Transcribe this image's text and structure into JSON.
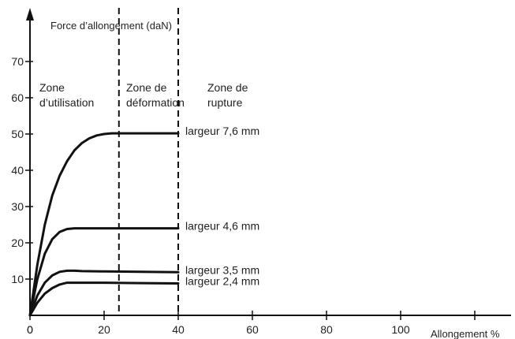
{
  "chart_data": {
    "type": "line",
    "title": "",
    "ylabel": "Force d’allongement (daN)",
    "xlabel": "Allongement %",
    "xlim": [
      0,
      120
    ],
    "ylim": [
      0,
      80
    ],
    "x_ticks": [
      0,
      20,
      40,
      60,
      80,
      100,
      120
    ],
    "x_tick_labels": [
      "0",
      "20",
      "40",
      "60",
      "80",
      "100",
      ""
    ],
    "y_ticks": [
      10,
      20,
      30,
      40,
      50,
      60,
      70
    ],
    "y_tick_labels": [
      "10",
      "20",
      "30",
      "40",
      "50",
      "60",
      "70"
    ],
    "grid": false,
    "vertical_lines": [
      24,
      40
    ],
    "zones": [
      {
        "line1": "Zone",
        "line2": "d’utilisation"
      },
      {
        "line1": "Zone de",
        "line2": "déformation"
      },
      {
        "line1": "Zone de",
        "line2": "rupture"
      }
    ],
    "series": [
      {
        "name": "largeur 7,6 mm",
        "x": [
          0,
          2,
          4,
          6,
          8,
          10,
          12,
          14,
          16,
          18,
          20,
          22,
          24,
          30,
          40
        ],
        "y": [
          0,
          14,
          25,
          33,
          38.5,
          42.5,
          45.5,
          47.5,
          48.8,
          49.6,
          50,
          50.2,
          50.2,
          50.2,
          50.2
        ]
      },
      {
        "name": "largeur 4,6 mm",
        "x": [
          0,
          2,
          4,
          6,
          8,
          10,
          12,
          14,
          20,
          30,
          40
        ],
        "y": [
          0,
          10,
          17,
          21,
          23,
          23.8,
          24,
          24,
          24,
          24,
          24
        ]
      },
      {
        "name": "largeur 3,5 mm",
        "x": [
          0,
          2,
          4,
          6,
          8,
          10,
          12,
          14,
          20,
          30,
          40
        ],
        "y": [
          0,
          5.5,
          9,
          11,
          12,
          12.3,
          12.3,
          12.2,
          12.1,
          12,
          11.9
        ]
      },
      {
        "name": "largeur 2,4 mm",
        "x": [
          0,
          2,
          4,
          6,
          8,
          10,
          12,
          20,
          30,
          40
        ],
        "y": [
          0,
          3.5,
          6,
          7.5,
          8.5,
          9,
          9,
          9,
          8.9,
          8.8
        ]
      }
    ]
  }
}
